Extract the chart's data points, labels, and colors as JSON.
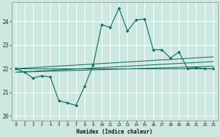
{
  "title": "",
  "xlabel": "Humidex (Indice chaleur)",
  "ylabel": "",
  "xlim": [
    -0.5,
    23.5
  ],
  "ylim": [
    19.8,
    24.8
  ],
  "yticks": [
    20,
    21,
    22,
    23,
    24
  ],
  "xticks": [
    0,
    1,
    2,
    3,
    4,
    5,
    6,
    7,
    8,
    9,
    10,
    11,
    12,
    13,
    14,
    15,
    16,
    17,
    18,
    19,
    20,
    21,
    22,
    23
  ],
  "bg_color": "#cce8e0",
  "grid_color": "#ffffff",
  "line_color": "#1a6e60",
  "main_line": {
    "x": [
      0,
      1,
      2,
      3,
      4,
      5,
      6,
      7,
      8,
      9,
      10,
      11,
      12,
      13,
      14,
      15,
      16,
      17,
      18,
      19,
      20,
      21,
      22,
      23
    ],
    "y": [
      22.0,
      21.85,
      21.6,
      21.7,
      21.65,
      20.65,
      20.55,
      20.45,
      21.25,
      22.15,
      23.85,
      23.75,
      24.55,
      23.6,
      24.05,
      24.1,
      22.8,
      22.8,
      22.45,
      22.7,
      22.0,
      22.05,
      22.0,
      22.0
    ]
  },
  "straight_lines": [
    {
      "x": [
        0,
        23
      ],
      "y": [
        22.0,
        22.0
      ]
    },
    {
      "x": [
        0,
        23
      ],
      "y": [
        21.85,
        22.1
      ]
    },
    {
      "x": [
        0,
        23
      ],
      "y": [
        21.85,
        22.3
      ]
    },
    {
      "x": [
        0,
        23
      ],
      "y": [
        22.0,
        22.5
      ]
    }
  ]
}
